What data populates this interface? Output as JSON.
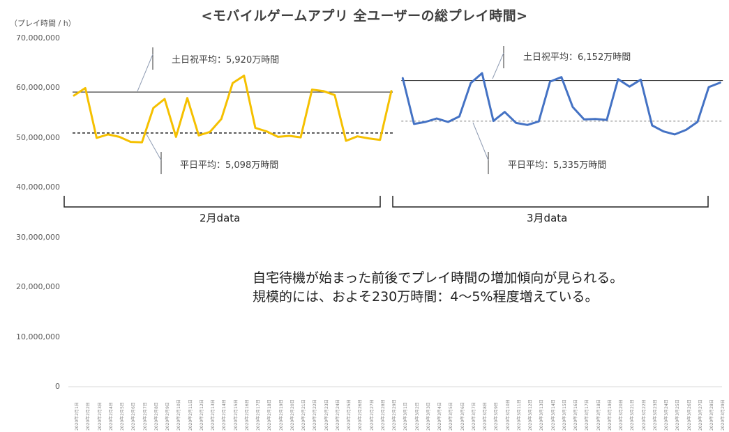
{
  "title": "<モバイルゲームアプリ 全ユーザーの総プレイ時間>",
  "y_unit_label": "（プレイ時間 / h）",
  "annotations": {
    "feb_weekend": "土日祝平均：5,920万時間",
    "feb_weekday": "平日平均：5,098万時間",
    "mar_weekend": "土日祝平均：6,152万時間",
    "mar_weekday": "平日平均：5,335万時間"
  },
  "brace_labels": {
    "feb": "2月data",
    "mar": "3月data"
  },
  "comment_lines": [
    "自宅待機が始まった前後でプレイ時間の増加傾向が見られる。",
    "規模的には、およそ230万時間：4〜5%程度増えている。"
  ],
  "colors": {
    "feb_series": "#F5C000",
    "mar_series": "#4472C4",
    "axis_text": "#595959",
    "grid": "#D9D9D9"
  },
  "chart_data": {
    "type": "line",
    "title": "<モバイルゲームアプリ 全ユーザーの総プレイ時間>",
    "ylabel": "（プレイ時間 / h）",
    "ylim": [
      0,
      70000000
    ],
    "yticks": [
      "0",
      "10,000,000",
      "20,000,000",
      "30,000,000",
      "40,000,000",
      "50,000,000",
      "60,000,000",
      "70,000,000"
    ],
    "grid": false,
    "series": [
      {
        "name": "2月data",
        "color": "#F5C000",
        "x": [
          "2020年2月1日",
          "2020年2月2日",
          "2020年2月3日",
          "2020年2月4日",
          "2020年2月5日",
          "2020年2月6日",
          "2020年2月7日",
          "2020年2月8日",
          "2020年2月9日",
          "2020年2月10日",
          "2020年2月11日",
          "2020年2月12日",
          "2020年2月13日",
          "2020年2月14日",
          "2020年2月15日",
          "2020年2月16日",
          "2020年2月17日",
          "2020年2月18日",
          "2020年2月19日",
          "2020年2月20日",
          "2020年2月21日",
          "2020年2月22日",
          "2020年2月23日",
          "2020年2月24日",
          "2020年2月25日",
          "2020年2月26日",
          "2020年2月27日",
          "2020年2月28日",
          "2020年2月29日"
        ],
        "values": [
          58500000,
          60000000,
          50000000,
          50700000,
          50200000,
          49200000,
          49100000,
          56000000,
          57800000,
          50200000,
          58000000,
          50500000,
          51200000,
          53800000,
          61000000,
          62500000,
          52000000,
          51300000,
          50200000,
          50400000,
          50100000,
          59700000,
          59400000,
          58600000,
          49400000,
          50300000,
          49900000,
          49600000,
          59400000
        ]
      },
      {
        "name": "3月data",
        "color": "#4472C4",
        "x": [
          "2020年3月1日",
          "2020年3月2日",
          "2020年3月3日",
          "2020年3月4日",
          "2020年3月5日",
          "2020年3月6日",
          "2020年3月7日",
          "2020年3月8日",
          "2020年3月9日",
          "2020年3月10日",
          "2020年3月11日",
          "2020年3月12日",
          "2020年3月13日",
          "2020年3月14日",
          "2020年3月15日",
          "2020年3月16日",
          "2020年3月17日",
          "2020年3月18日",
          "2020年3月19日",
          "2020年3月20日",
          "2020年3月21日",
          "2020年3月22日",
          "2020年3月23日",
          "2020年3月24日",
          "2020年3月25日",
          "2020年3月26日",
          "2020年3月27日",
          "2020年3月28日",
          "2020年3月29日"
        ],
        "values": [
          62000000,
          52800000,
          53200000,
          53900000,
          53200000,
          54300000,
          61000000,
          63000000,
          53400000,
          55200000,
          53000000,
          52600000,
          53300000,
          61300000,
          62200000,
          56200000,
          53700000,
          53800000,
          53600000,
          61800000,
          60300000,
          61700000,
          52500000,
          51300000,
          50700000,
          51600000,
          53200000,
          60200000,
          61100000
        ]
      }
    ],
    "reference_lines": [
      {
        "label": "土日祝平均：5,920万時間",
        "value": 59200000,
        "style": "solid"
      },
      {
        "label": "平日平均：5,098万時間",
        "value": 50980000,
        "style": "dashed"
      },
      {
        "label": "土日祝平均：6,152万時間",
        "value": 61520000,
        "style": "solid"
      },
      {
        "label": "平日平均：5,335万時間",
        "value": 53350000,
        "style": "dashed"
      }
    ]
  }
}
